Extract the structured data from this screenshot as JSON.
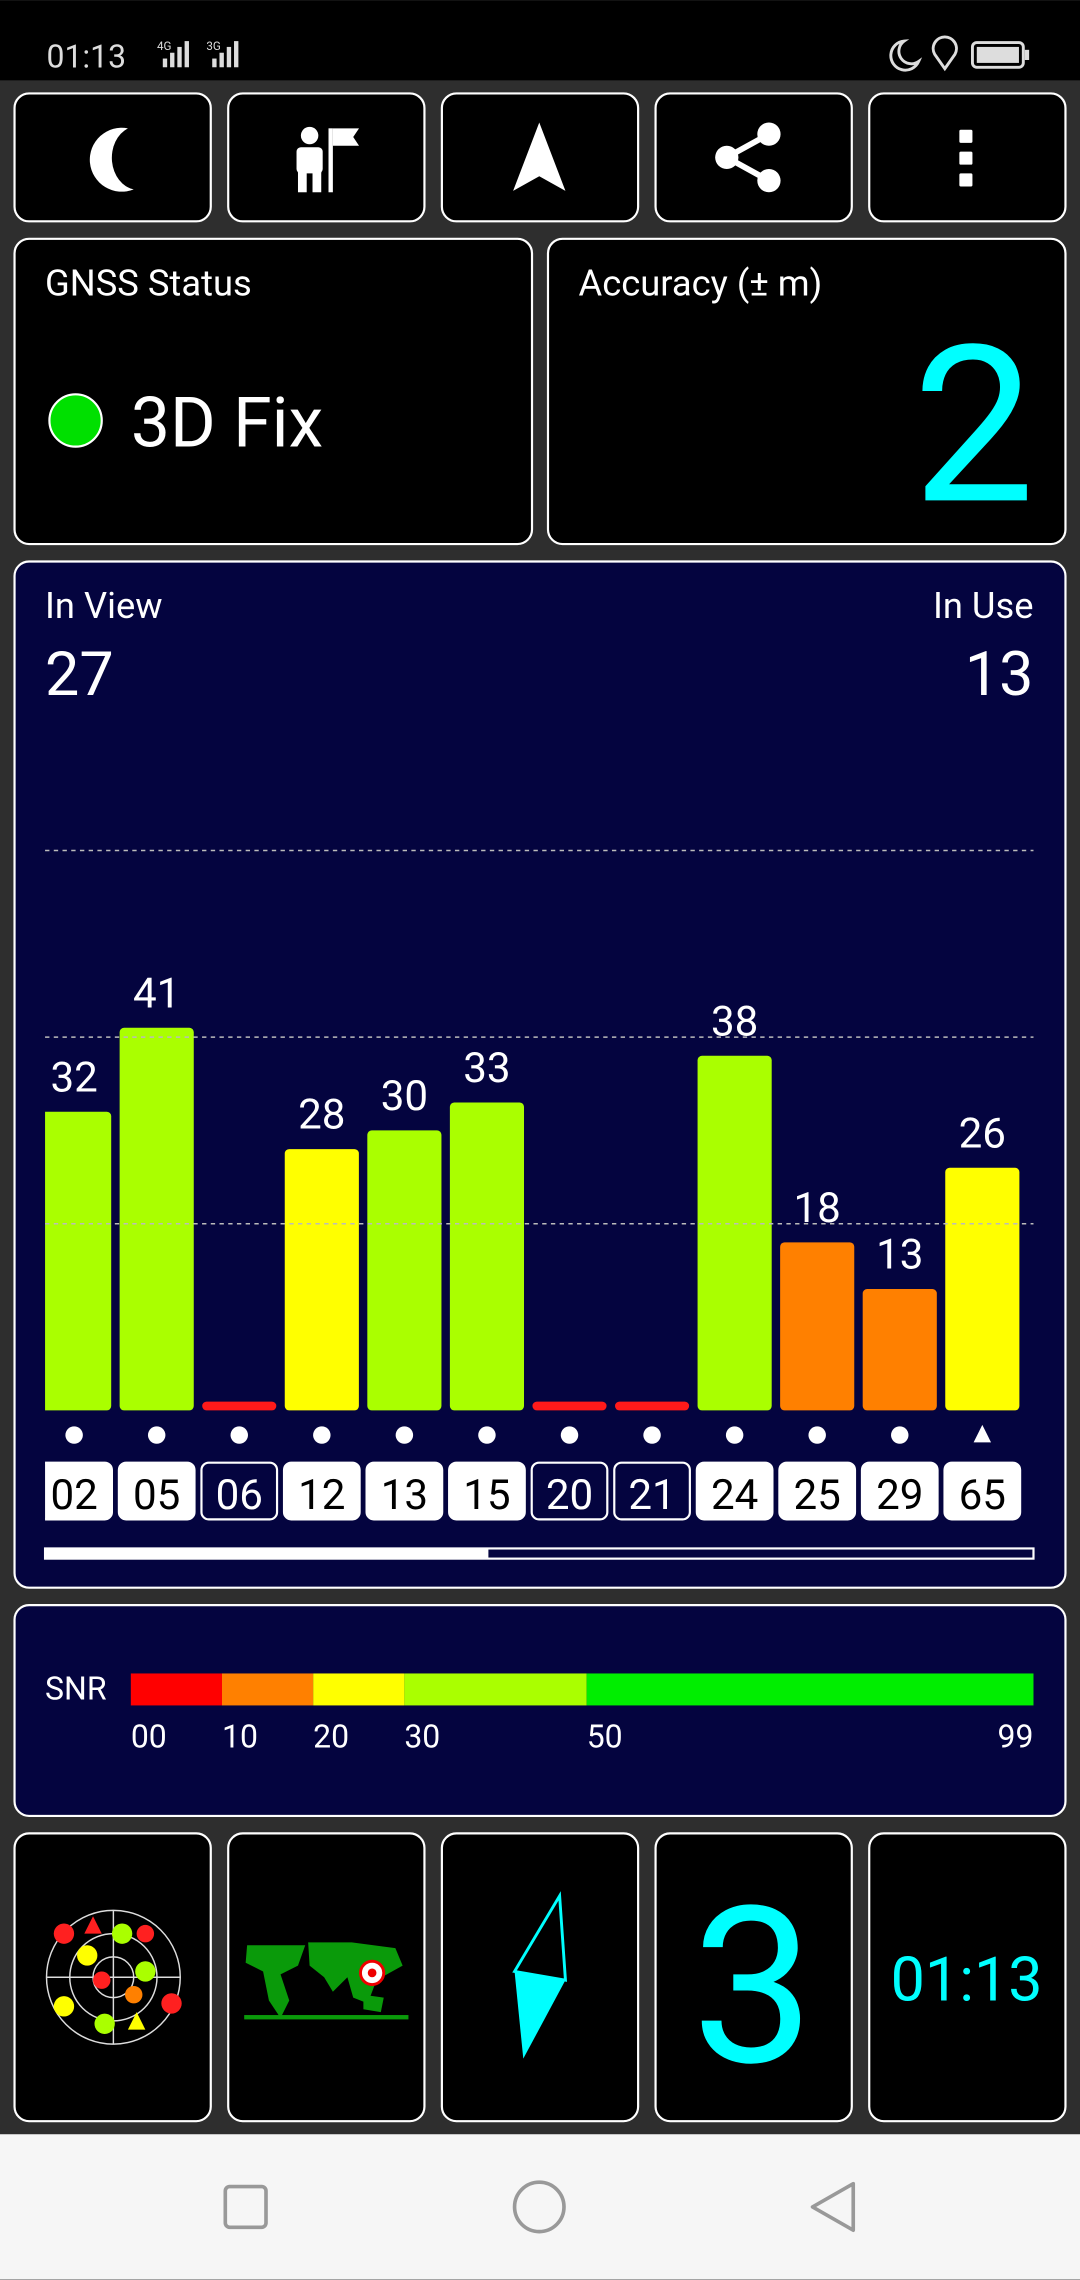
{
  "status_bar": {
    "time": "01:13",
    "network_1": "4G",
    "network_2": "3G"
  },
  "gnss_status": {
    "title": "GNSS Status",
    "fix": "3D Fix",
    "indicator_color": "#00e000"
  },
  "accuracy": {
    "title": "Accuracy (± m)",
    "value": 2
  },
  "satellites": {
    "in_view_label": "In View",
    "in_view": 27,
    "in_use_label": "In Use",
    "in_use": 13
  },
  "chart_data": {
    "type": "bar",
    "categories": [
      "02",
      "05",
      "06",
      "12",
      "13",
      "15",
      "20",
      "21",
      "24",
      "25",
      "29",
      "65"
    ],
    "values": [
      32,
      41,
      0,
      28,
      30,
      33,
      0,
      0,
      38,
      18,
      13,
      26
    ],
    "colors": [
      "#aaff00",
      "#aaff00",
      "#ff1a1a",
      "#ffff00",
      "#aaff00",
      "#aaff00",
      "#ff1a1a",
      "#ff1a1a",
      "#aaff00",
      "#ff8000",
      "#ff8000",
      "#ffff00"
    ],
    "used": [
      true,
      true,
      false,
      true,
      true,
      true,
      false,
      false,
      true,
      true,
      true,
      true
    ],
    "markers": [
      "circle",
      "circle",
      "circle",
      "circle",
      "circle",
      "circle",
      "circle",
      "circle",
      "circle",
      "circle",
      "circle",
      "triangle"
    ],
    "ylim": [
      0,
      62
    ],
    "yticks": [
      20,
      40,
      60
    ],
    "grid": true
  },
  "snr_scale": {
    "label": "SNR",
    "xlim": [
      0,
      99
    ],
    "ticks": [
      {
        "value": 0,
        "label": "00"
      },
      10,
      20,
      30,
      50,
      99
    ],
    "colors": [
      "#ff0000",
      "#ff8000",
      "#ffff00",
      "#aaff00",
      "#00ee00"
    ]
  },
  "tiles": {
    "satellites_used": 3,
    "clock": "01:13"
  }
}
